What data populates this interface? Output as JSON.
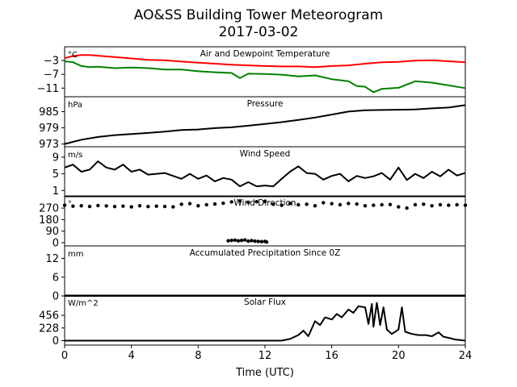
{
  "figure": {
    "title": "AO&SS Building Tower Meteorogram",
    "subtitle": "2017-03-02",
    "xlabel": "Time (UTC)",
    "xticks": [
      0,
      4,
      8,
      12,
      16,
      20,
      24
    ],
    "xlim": [
      0,
      24
    ]
  },
  "chart_data": [
    {
      "type": "line",
      "title": "Air and Dewpoint Temperature",
      "unit": "°C",
      "ylim": [
        -13.5,
        1.0
      ],
      "yticks": [
        -3,
        -7,
        -11
      ],
      "series": [
        {
          "color": "#ff0000",
          "x": [
            0,
            0.5,
            1,
            1.5,
            2,
            3,
            4,
            5,
            6,
            7,
            8,
            9,
            10,
            11,
            12,
            13,
            14,
            15,
            16,
            17,
            18,
            19,
            20,
            21,
            22,
            23,
            24
          ],
          "values": [
            -2.3,
            -1.7,
            -1.4,
            -1.4,
            -1.6,
            -2.0,
            -2.4,
            -2.8,
            -2.9,
            -3.3,
            -3.6,
            -3.9,
            -4.2,
            -4.4,
            -4.6,
            -4.7,
            -4.7,
            -4.9,
            -4.6,
            -4.4,
            -3.9,
            -3.5,
            -3.4,
            -3.0,
            -2.9,
            -3.2,
            -3.5
          ]
        },
        {
          "color": "#008000",
          "x": [
            0,
            0.5,
            1,
            1.5,
            2,
            3,
            4,
            5,
            6,
            7,
            8,
            9,
            10,
            10.5,
            11,
            12,
            13,
            14,
            15,
            16,
            17,
            17.5,
            18,
            18.5,
            19,
            20,
            21,
            22,
            23,
            24
          ],
          "values": [
            -3.2,
            -3.5,
            -4.6,
            -4.9,
            -4.8,
            -5.2,
            -5.0,
            -5.2,
            -5.6,
            -5.6,
            -6.1,
            -6.4,
            -6.6,
            -8.1,
            -6.8,
            -6.9,
            -7.1,
            -7.6,
            -7.3,
            -8.4,
            -9.0,
            -10.4,
            -10.6,
            -12.2,
            -11.2,
            -10.9,
            -9.0,
            -9.4,
            -10.2,
            -11.0
          ]
        }
      ]
    },
    {
      "type": "line",
      "title": "Pressure",
      "unit": "hPa",
      "ylim": [
        972.0,
        990.5
      ],
      "yticks": [
        973,
        979,
        985
      ],
      "series": [
        {
          "color": "#000000",
          "x": [
            0,
            1,
            2,
            3,
            4,
            5,
            6,
            7,
            8,
            9,
            10,
            11,
            12,
            13,
            14,
            15,
            16,
            17,
            18,
            19,
            20,
            21,
            22,
            23,
            24
          ],
          "values": [
            973.0,
            974.6,
            975.6,
            976.3,
            976.7,
            977.1,
            977.6,
            978.2,
            978.4,
            978.9,
            979.2,
            979.8,
            980.4,
            981.1,
            981.9,
            982.8,
            983.9,
            985.0,
            985.5,
            985.6,
            985.7,
            985.8,
            986.2,
            986.5,
            987.4
          ]
        }
      ]
    },
    {
      "type": "line",
      "title": "Wind Speed",
      "unit": "m/s",
      "ylim": [
        -0.5,
        11.5
      ],
      "yticks": [
        1,
        5,
        9
      ],
      "series": [
        {
          "color": "#000000",
          "x": [
            0,
            0.5,
            1,
            1.5,
            2,
            2.5,
            3,
            3.5,
            4,
            4.5,
            5,
            5.5,
            6,
            6.5,
            7,
            7.5,
            8,
            8.5,
            9,
            9.5,
            10,
            10.5,
            11,
            11.5,
            12,
            12.5,
            13,
            13.5,
            14,
            14.5,
            15,
            15.5,
            16,
            16.5,
            17,
            17.5,
            18,
            18.5,
            19,
            19.5,
            20,
            20.5,
            21,
            21.5,
            22,
            22.5,
            23,
            23.5,
            24
          ],
          "values": [
            6.5,
            7.2,
            5.5,
            6.0,
            8.0,
            6.5,
            6.0,
            7.2,
            5.5,
            6.0,
            4.8,
            5.0,
            5.2,
            4.5,
            3.8,
            5.0,
            3.8,
            4.6,
            3.2,
            4.0,
            3.6,
            2.0,
            3.0,
            2.0,
            2.2,
            2.0,
            3.8,
            5.5,
            6.8,
            5.2,
            5.0,
            3.6,
            4.5,
            5.0,
            3.2,
            4.5,
            4.0,
            4.4,
            5.2,
            3.6,
            6.5,
            3.5,
            5.0,
            4.0,
            5.5,
            4.4,
            6.0,
            4.6,
            5.2
          ]
        }
      ]
    },
    {
      "type": "scatter",
      "title": "Wind Direction",
      "unit": "°",
      "ylim": [
        -25,
        365
      ],
      "yticks": [
        0,
        90,
        180,
        270
      ],
      "series": [
        {
          "color": "#000000",
          "x": [
            0,
            0.5,
            1,
            1.5,
            2,
            2.5,
            3,
            3.5,
            4,
            4.5,
            5,
            5.5,
            6,
            6.5,
            7,
            7.5,
            8,
            8.5,
            9,
            9.5,
            10,
            10.5,
            11,
            11.5,
            12,
            12.5,
            13,
            13.5,
            14,
            14.5,
            15,
            15.5,
            16,
            16.5,
            17,
            17.5,
            18,
            18.5,
            19,
            19.5,
            20,
            20.5,
            21,
            21.5,
            22,
            22.5,
            23,
            23.5,
            24
          ],
          "values": [
            292,
            285,
            288,
            283,
            290,
            287,
            282,
            285,
            280,
            288,
            282,
            285,
            283,
            280,
            300,
            305,
            288,
            296,
            302,
            308,
            318,
            325,
            315,
            320,
            322,
            300,
            292,
            306,
            296,
            300,
            288,
            312,
            305,
            296,
            306,
            302,
            288,
            292,
            296,
            298,
            280,
            270,
            296,
            300,
            288,
            296,
            292,
            296,
            292
          ]
        },
        {
          "color": "#000000",
          "x": [
            9.8,
            10.0,
            10.2,
            10.4,
            10.6,
            10.8,
            11.0,
            11.2,
            11.4,
            11.6,
            11.8,
            12.0,
            12.1
          ],
          "values": [
            15,
            18,
            20,
            15,
            18,
            22,
            12,
            16,
            12,
            10,
            8,
            10,
            5
          ]
        }
      ]
    },
    {
      "type": "line",
      "title": "Accumulated Precipitation Since 0Z",
      "unit": "mm",
      "ylim": [
        0,
        16
      ],
      "yticks": [
        0,
        6,
        12
      ],
      "series": [
        {
          "color": "#000000",
          "x": [
            0,
            24
          ],
          "values": [
            0,
            0
          ]
        }
      ]
    },
    {
      "type": "line",
      "title": "Solar Flux",
      "unit": "W/m^2",
      "ylim": [
        -80,
        820
      ],
      "yticks": [
        0,
        228,
        456
      ],
      "series": [
        {
          "color": "#000000",
          "x": [
            0,
            13.0,
            13.5,
            14.0,
            14.3,
            14.6,
            15.0,
            15.3,
            15.6,
            16.0,
            16.3,
            16.6,
            17.0,
            17.3,
            17.6,
            18.0,
            18.2,
            18.4,
            18.5,
            18.7,
            18.9,
            19.1,
            19.3,
            19.6,
            20.0,
            20.2,
            20.4,
            20.8,
            21.2,
            21.6,
            22.0,
            22.4,
            22.7,
            23.0,
            23.4,
            24.0
          ],
          "values": [
            0,
            0,
            30,
            100,
            180,
            80,
            350,
            280,
            420,
            380,
            480,
            420,
            560,
            500,
            620,
            600,
            300,
            660,
            250,
            680,
            280,
            600,
            200,
            120,
            200,
            600,
            160,
            120,
            100,
            100,
            80,
            150,
            70,
            50,
            20,
            0
          ]
        }
      ]
    }
  ]
}
